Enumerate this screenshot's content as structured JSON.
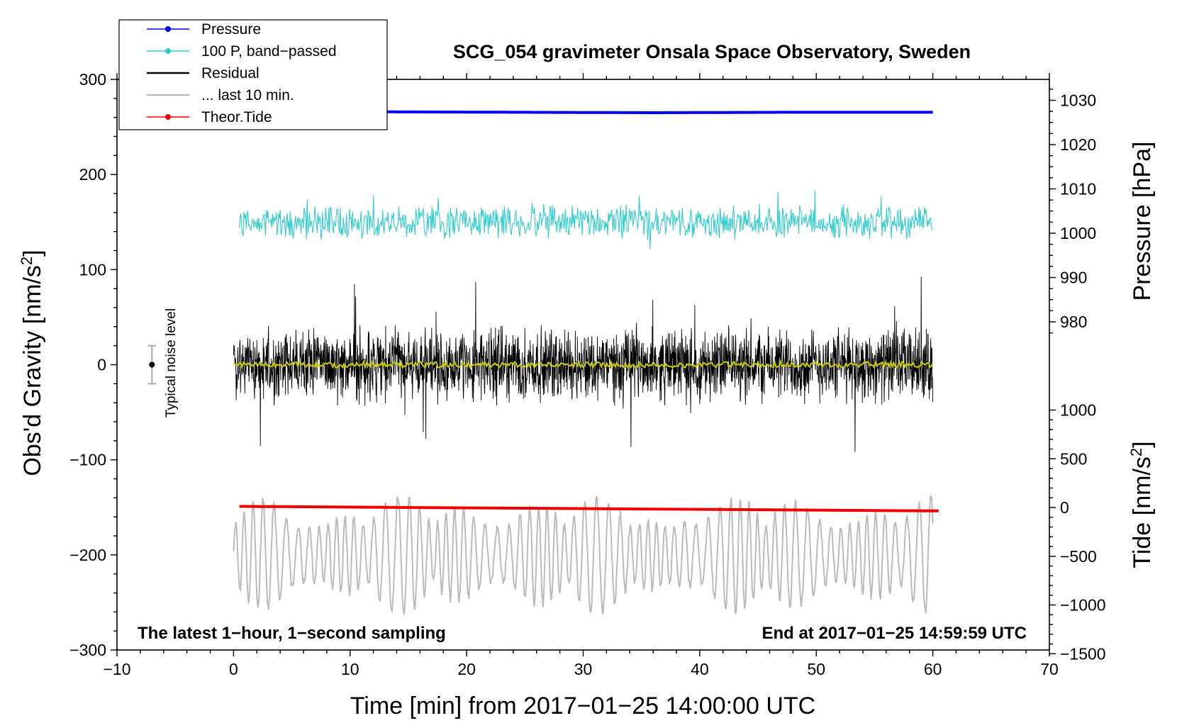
{
  "chart_data": {
    "type": "line",
    "title": "SCG_054 gravimeter Onsala Space Observatory, Sweden",
    "xlabel": "Time [min] from 2017−01−25 14:00:00 UTC",
    "ylabel_left_base": "Obs'd Gravity [nm/s",
    "ylabel_left_sup": "2",
    "ylabel_left_end": "]",
    "ylabel_right_pressure": "Pressure [hPa]",
    "ylabel_right_tide_base": "Tide [nm/s",
    "ylabel_right_tide_sup": "2",
    "ylabel_right_tide_end": "]",
    "xlim": [
      -10,
      70
    ],
    "ylim_left": [
      -300,
      300
    ],
    "x_ticks": [
      -10,
      0,
      10,
      20,
      30,
      40,
      50,
      60,
      70
    ],
    "x_tick_labels": [
      "−10",
      "0",
      "10",
      "20",
      "30",
      "40",
      "50",
      "60",
      "70"
    ],
    "y_left_ticks": [
      -300,
      -200,
      -100,
      0,
      100,
      200,
      300
    ],
    "y_left_tick_labels": [
      "−300",
      "−200",
      "−100",
      "0",
      "100",
      "200",
      "300"
    ],
    "pressure_ticks": [
      980,
      990,
      1000,
      1010,
      1020,
      1030
    ],
    "pressure_tick_labels": [
      "980",
      "990",
      "1000",
      "1010",
      "1020",
      "1030"
    ],
    "tide_ticks": [
      -1500,
      -1000,
      -500,
      0,
      500,
      1000
    ],
    "tide_tick_labels": [
      "−1500",
      "−1000",
      "−500",
      "0",
      "500",
      "1000"
    ],
    "annotation_left": "The latest 1−hour, 1−second sampling",
    "annotation_right": "End at 2017−01−25 14:59:59 UTC",
    "noise_label": "Typical noise level",
    "noise_level": {
      "x": -7,
      "center": 0,
      "half_range": 20
    },
    "legend": [
      {
        "label": "Pressure",
        "color": "#0000ee",
        "marker": true
      },
      {
        "label": "100 P, band−passed",
        "color": "#33cccc",
        "marker": true
      },
      {
        "label": "Residual",
        "color": "#000000",
        "marker": false
      },
      {
        "label": "... last 10 min.",
        "color": "#bbbbbb",
        "marker": false
      },
      {
        "label": "Theor.Tide",
        "color": "#ee0000",
        "marker": true
      }
    ],
    "series": [
      {
        "name": "Pressure",
        "color": "#0000ee",
        "unit": "hPa",
        "x_start": 0.0,
        "x_end": 60.0,
        "values": [
          1027.3,
          1027.4,
          1027.3,
          1027.2,
          1027.3,
          1027.3
        ]
      },
      {
        "name": "100 P, band-passed",
        "color": "#33cccc",
        "unit": "nm/s2",
        "x_start": 0.5,
        "x_end": 60.0,
        "baseline": 150,
        "amplitude": 20
      },
      {
        "name": "Residual",
        "color": "#000000",
        "unit": "nm/s2",
        "x_start": 0.0,
        "x_end": 60.0,
        "baseline": 0,
        "amplitude": 45,
        "min": -100,
        "max": 100
      },
      {
        "name": "Residual smoothed",
        "color": "#cccc00",
        "unit": "nm/s2",
        "x_start": 0.0,
        "x_end": 60.0,
        "baseline": 0,
        "amplitude": 3
      },
      {
        "name": "... last 10 min.",
        "color": "#bbbbbb",
        "unit": "nm/s2",
        "x_start": 0.0,
        "x_end": 60.0,
        "baseline": -200,
        "amplitude": 45,
        "min": -275,
        "max": -110
      },
      {
        "name": "Theor.Tide",
        "color": "#ee0000",
        "unit": "nm/s2",
        "x": [
          0.5,
          60.5
        ],
        "values": [
          12,
          -35
        ]
      }
    ]
  }
}
